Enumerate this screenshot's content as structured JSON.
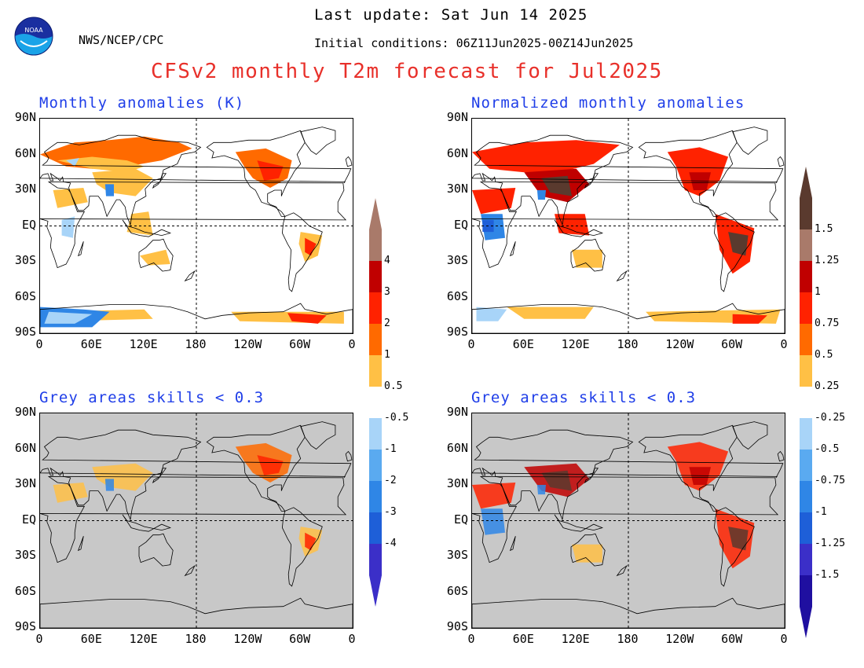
{
  "header": {
    "last_update": "Last update: Sat Jun 14 2025",
    "initial_conditions": "Initial conditions: 06Z11Jun2025-00Z14Jun2025",
    "agency": "NWS/NCEP/CPC",
    "logo_text": "NOAA",
    "title": "CFSv2 monthly T2m forecast for Jul2025"
  },
  "colors": {
    "accent_title": "#e8302a",
    "panel_title": "#1f3ee8",
    "skill_mask_grey": "#c8c8c8",
    "scale": [
      "#1f0fa0",
      "#3b2fc8",
      "#1e5fd8",
      "#2f86e6",
      "#5aaaf0",
      "#a8d4f8",
      "#ffffff",
      "#ffc045",
      "#ff6a00",
      "#ff2200",
      "#c00000",
      "#a97a6a",
      "#5a3a2e"
    ]
  },
  "chart_data": [
    {
      "type": "heatmap",
      "title": "Monthly anomalies (K)",
      "x_ticks": [
        "0",
        "60E",
        "120E",
        "180",
        "120W",
        "60W",
        "0"
      ],
      "y_ticks": [
        "90N",
        "60N",
        "30N",
        "EQ",
        "30S",
        "60S",
        "90S"
      ],
      "colorbar": [
        "-4",
        "-3",
        "-2",
        "-1",
        "-0.5",
        "0.5",
        "1",
        "2",
        "3",
        "4"
      ]
    },
    {
      "type": "heatmap",
      "title": "Normalized monthly anomalies",
      "x_ticks": [
        "0",
        "60E",
        "120E",
        "180",
        "120W",
        "60W",
        "0"
      ],
      "y_ticks": [
        "90N",
        "60N",
        "30N",
        "EQ",
        "30S",
        "60S",
        "90S"
      ],
      "colorbar": [
        "-1.5",
        "-1.25",
        "-1",
        "-0.75",
        "-0.5",
        "-0.25",
        "0.25",
        "0.5",
        "0.75",
        "1",
        "1.25",
        "1.5"
      ]
    },
    {
      "type": "heatmap",
      "title": "Grey areas skills < 0.3",
      "x_ticks": [
        "0",
        "60E",
        "120E",
        "180",
        "120W",
        "60W",
        "0"
      ],
      "y_ticks": [
        "90N",
        "60N",
        "30N",
        "EQ",
        "30S",
        "60S",
        "90S"
      ]
    },
    {
      "type": "heatmap",
      "title": "Grey areas skills < 0.3",
      "x_ticks": [
        "0",
        "60E",
        "120E",
        "180",
        "120W",
        "60W",
        "0"
      ],
      "y_ticks": [
        "90N",
        "60N",
        "30N",
        "EQ",
        "30S",
        "60S",
        "90S"
      ]
    }
  ]
}
